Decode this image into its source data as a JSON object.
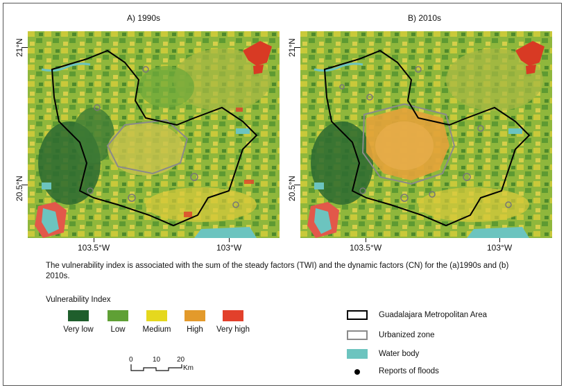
{
  "panels": [
    {
      "title": "A) 1990s"
    },
    {
      "title": "B) 2010s"
    }
  ],
  "axes": {
    "lat_labels": [
      "21°N",
      "20.5°N"
    ],
    "lon_labels": [
      "103.5°W",
      "103°W"
    ]
  },
  "caption": "The vulnerability index is associated with the sum of the steady factors (TWI) and the dynamic factors (CN) for the (a)1990s and (b) 2010s.",
  "vulnerability_index": {
    "title": "Vulnerability Index",
    "classes": [
      {
        "label": "Very low",
        "color": "#1f5e2c"
      },
      {
        "label": "Low",
        "color": "#5fa035"
      },
      {
        "label": "Medium",
        "color": "#e5d81e"
      },
      {
        "label": "High",
        "color": "#e39a2b"
      },
      {
        "label": "Very high",
        "color": "#e2402b"
      }
    ]
  },
  "scale_bar": {
    "ticks": [
      "0",
      "10",
      "20"
    ],
    "unit": "Km"
  },
  "legend": {
    "gma": "Guadalajara Metropolitan Area",
    "urban": "Urbanized zone",
    "water": "Water body",
    "floods": "Reports of floods"
  },
  "colors": {
    "water": "#6cc4bf",
    "urban_outline": "#8a8a8a",
    "gma_outline": "#000000"
  }
}
